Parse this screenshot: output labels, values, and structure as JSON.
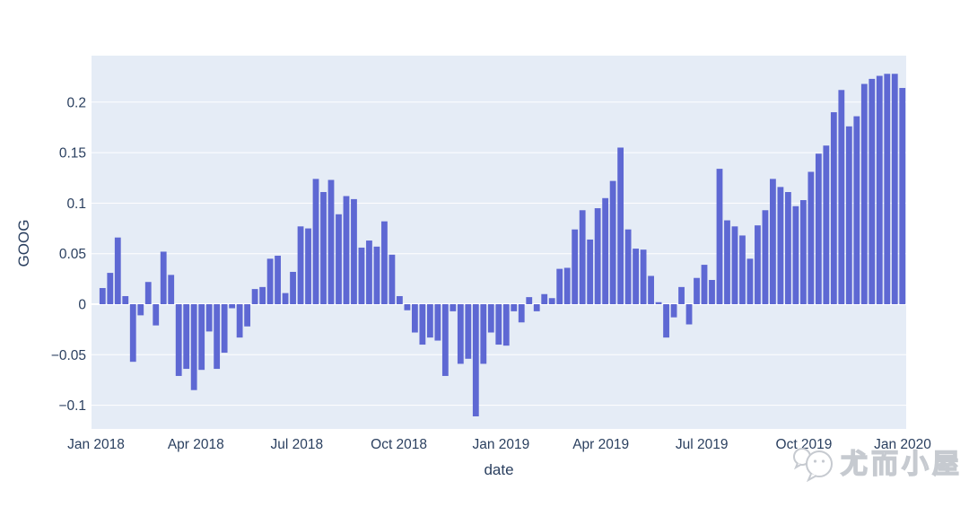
{
  "chart_data": {
    "type": "bar",
    "title": "",
    "xlabel": "date",
    "ylabel": "GOOG",
    "series_name": "GOOG",
    "frequency": "weekly",
    "x_range": [
      "Jan 2018",
      "Jan 2020"
    ],
    "x_tick_labels": [
      "Jan 2018",
      "Apr 2018",
      "Jul 2018",
      "Oct 2018",
      "Jan 2019",
      "Apr 2019",
      "Jul 2019",
      "Oct 2019",
      "Jan 2020"
    ],
    "y_tick_labels": [
      "0.2",
      "0.15",
      "0.1",
      "0.05",
      "0",
      "−0.05",
      "−0.1"
    ],
    "y_tick_values": [
      0.2,
      0.15,
      0.1,
      0.05,
      0,
      -0.05,
      -0.1
    ],
    "ylim": [
      -0.124,
      0.246
    ],
    "grid": true,
    "legend": "none",
    "values": [
      0.016,
      0.031,
      0.066,
      0.008,
      -0.057,
      -0.011,
      0.022,
      -0.021,
      0.052,
      0.029,
      -0.071,
      -0.064,
      -0.085,
      -0.065,
      -0.027,
      -0.064,
      -0.048,
      -0.004,
      -0.033,
      -0.022,
      0.015,
      0.017,
      0.045,
      0.048,
      0.011,
      0.032,
      0.077,
      0.075,
      0.124,
      0.111,
      0.123,
      0.089,
      0.107,
      0.104,
      0.056,
      0.063,
      0.057,
      0.082,
      0.049,
      0.008,
      -0.006,
      -0.028,
      -0.04,
      -0.033,
      -0.036,
      -0.071,
      -0.007,
      -0.059,
      -0.054,
      -0.111,
      -0.059,
      -0.028,
      -0.04,
      -0.041,
      -0.007,
      -0.018,
      0.007,
      -0.007,
      0.01,
      0.006,
      0.035,
      0.036,
      0.074,
      0.093,
      0.064,
      0.095,
      0.105,
      0.122,
      0.155,
      0.074,
      0.055,
      0.054,
      0.028,
      0.002,
      -0.033,
      -0.013,
      0.017,
      -0.02,
      0.026,
      0.039,
      0.024,
      0.134,
      0.083,
      0.077,
      0.068,
      0.045,
      0.078,
      0.093,
      0.124,
      0.116,
      0.111,
      0.097,
      0.103,
      0.131,
      0.149,
      0.157,
      0.19,
      0.212,
      0.176,
      0.186,
      0.218,
      0.223,
      0.226,
      0.228,
      0.228,
      0.214
    ],
    "style": {
      "bar_color": "#5e68d3",
      "plot_bg": "#e5ecf6",
      "grid_color": "#ffffff",
      "axis_text_color": "#2a3f5f",
      "page_bg": "#ffffff"
    }
  },
  "watermark": {
    "text": "尤而小屋",
    "icon": "wechat-chat-bubbles-icon",
    "color": "#c6cad0"
  }
}
